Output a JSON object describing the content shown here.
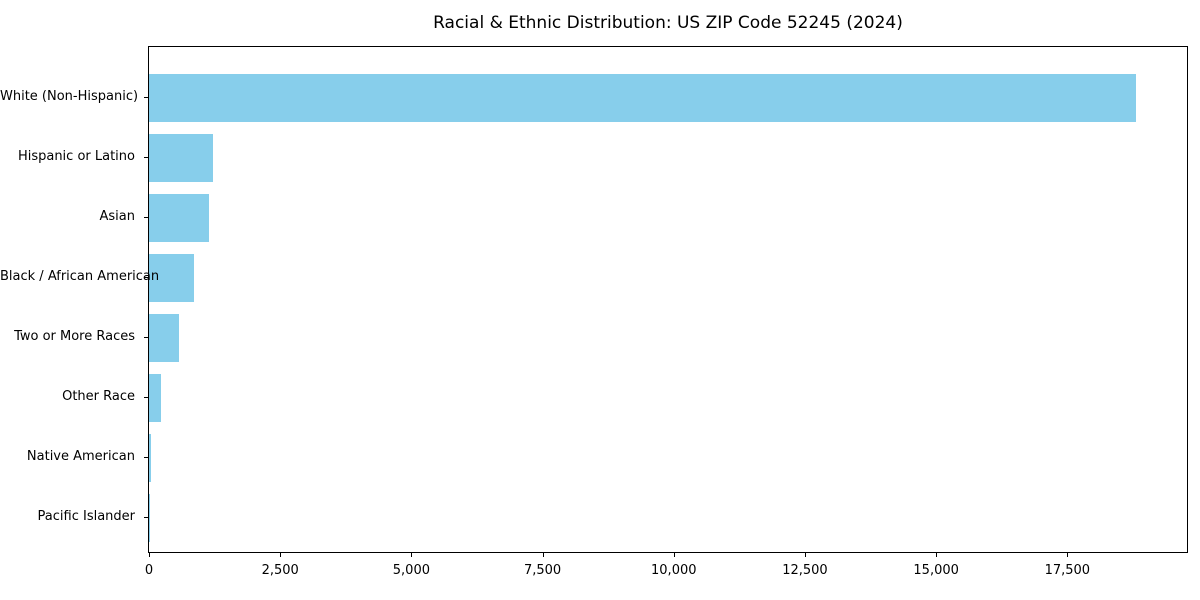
{
  "chart_data": {
    "type": "bar",
    "orientation": "horizontal",
    "title": "Racial & Ethnic Distribution: US ZIP Code 52245 (2024)",
    "categories": [
      "White (Non-Hispanic)",
      "Hispanic or Latino",
      "Asian",
      "Black / African American",
      "Two or More Races",
      "Other Race",
      "Native American",
      "Pacific Islander"
    ],
    "values": [
      18800,
      1220,
      1140,
      860,
      570,
      230,
      30,
      10
    ],
    "xlabel": "",
    "ylabel": "",
    "xlim": [
      0,
      19780
    ],
    "x_ticks": [
      0,
      2500,
      5000,
      7500,
      10000,
      12500,
      15000,
      17500
    ],
    "x_tick_labels": [
      "0",
      "2,500",
      "5,000",
      "7,500",
      "10,000",
      "12,500",
      "15,000",
      "17,500"
    ],
    "bar_color": "#87CEEB",
    "axis_color": "#000000",
    "text_color": "#000000",
    "background_color": "#ffffff",
    "grid": false,
    "legend": null
  }
}
